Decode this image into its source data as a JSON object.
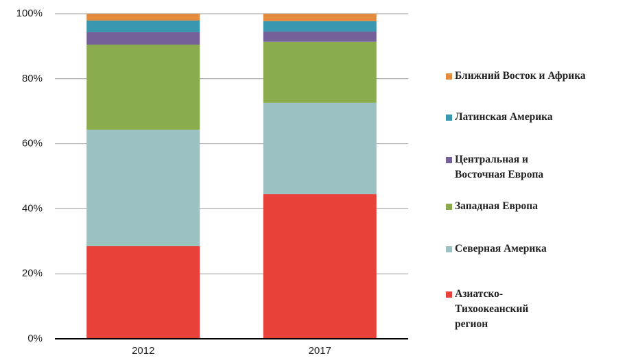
{
  "chart_data": {
    "type": "stacked_bar",
    "categories": [
      "2012",
      "2017"
    ],
    "series": [
      {
        "name": "Азиатско-\nТихоокеанский\nрегион",
        "color": "#e8413a",
        "values": [
          28.5,
          44.5
        ]
      },
      {
        "name": "Северная Америка",
        "color": "#9bc1c3",
        "values": [
          35.8,
          28.1
        ]
      },
      {
        "name": "Западная Европа",
        "color": "#8aab4e",
        "values": [
          26.2,
          18.8
        ]
      },
      {
        "name": "Центральная и\nВосточная Европа",
        "color": "#76609a",
        "values": [
          3.8,
          3.1
        ]
      },
      {
        "name": "Латинская Америка",
        "color": "#3a97b0",
        "values": [
          3.6,
          3.2
        ]
      },
      {
        "name": "Ближний Восток и Африка",
        "color": "#e38c3e",
        "values": [
          2.1,
          2.3
        ]
      }
    ],
    "ylim": [
      0,
      100
    ],
    "yticks": [
      {
        "value": 0,
        "label": "0%"
      },
      {
        "value": 20,
        "label": "20%"
      },
      {
        "value": 40,
        "label": "40%"
      },
      {
        "value": 60,
        "label": "60%"
      },
      {
        "value": 80,
        "label": "80%"
      },
      {
        "value": 100,
        "label": "100%"
      }
    ],
    "grid": true
  }
}
